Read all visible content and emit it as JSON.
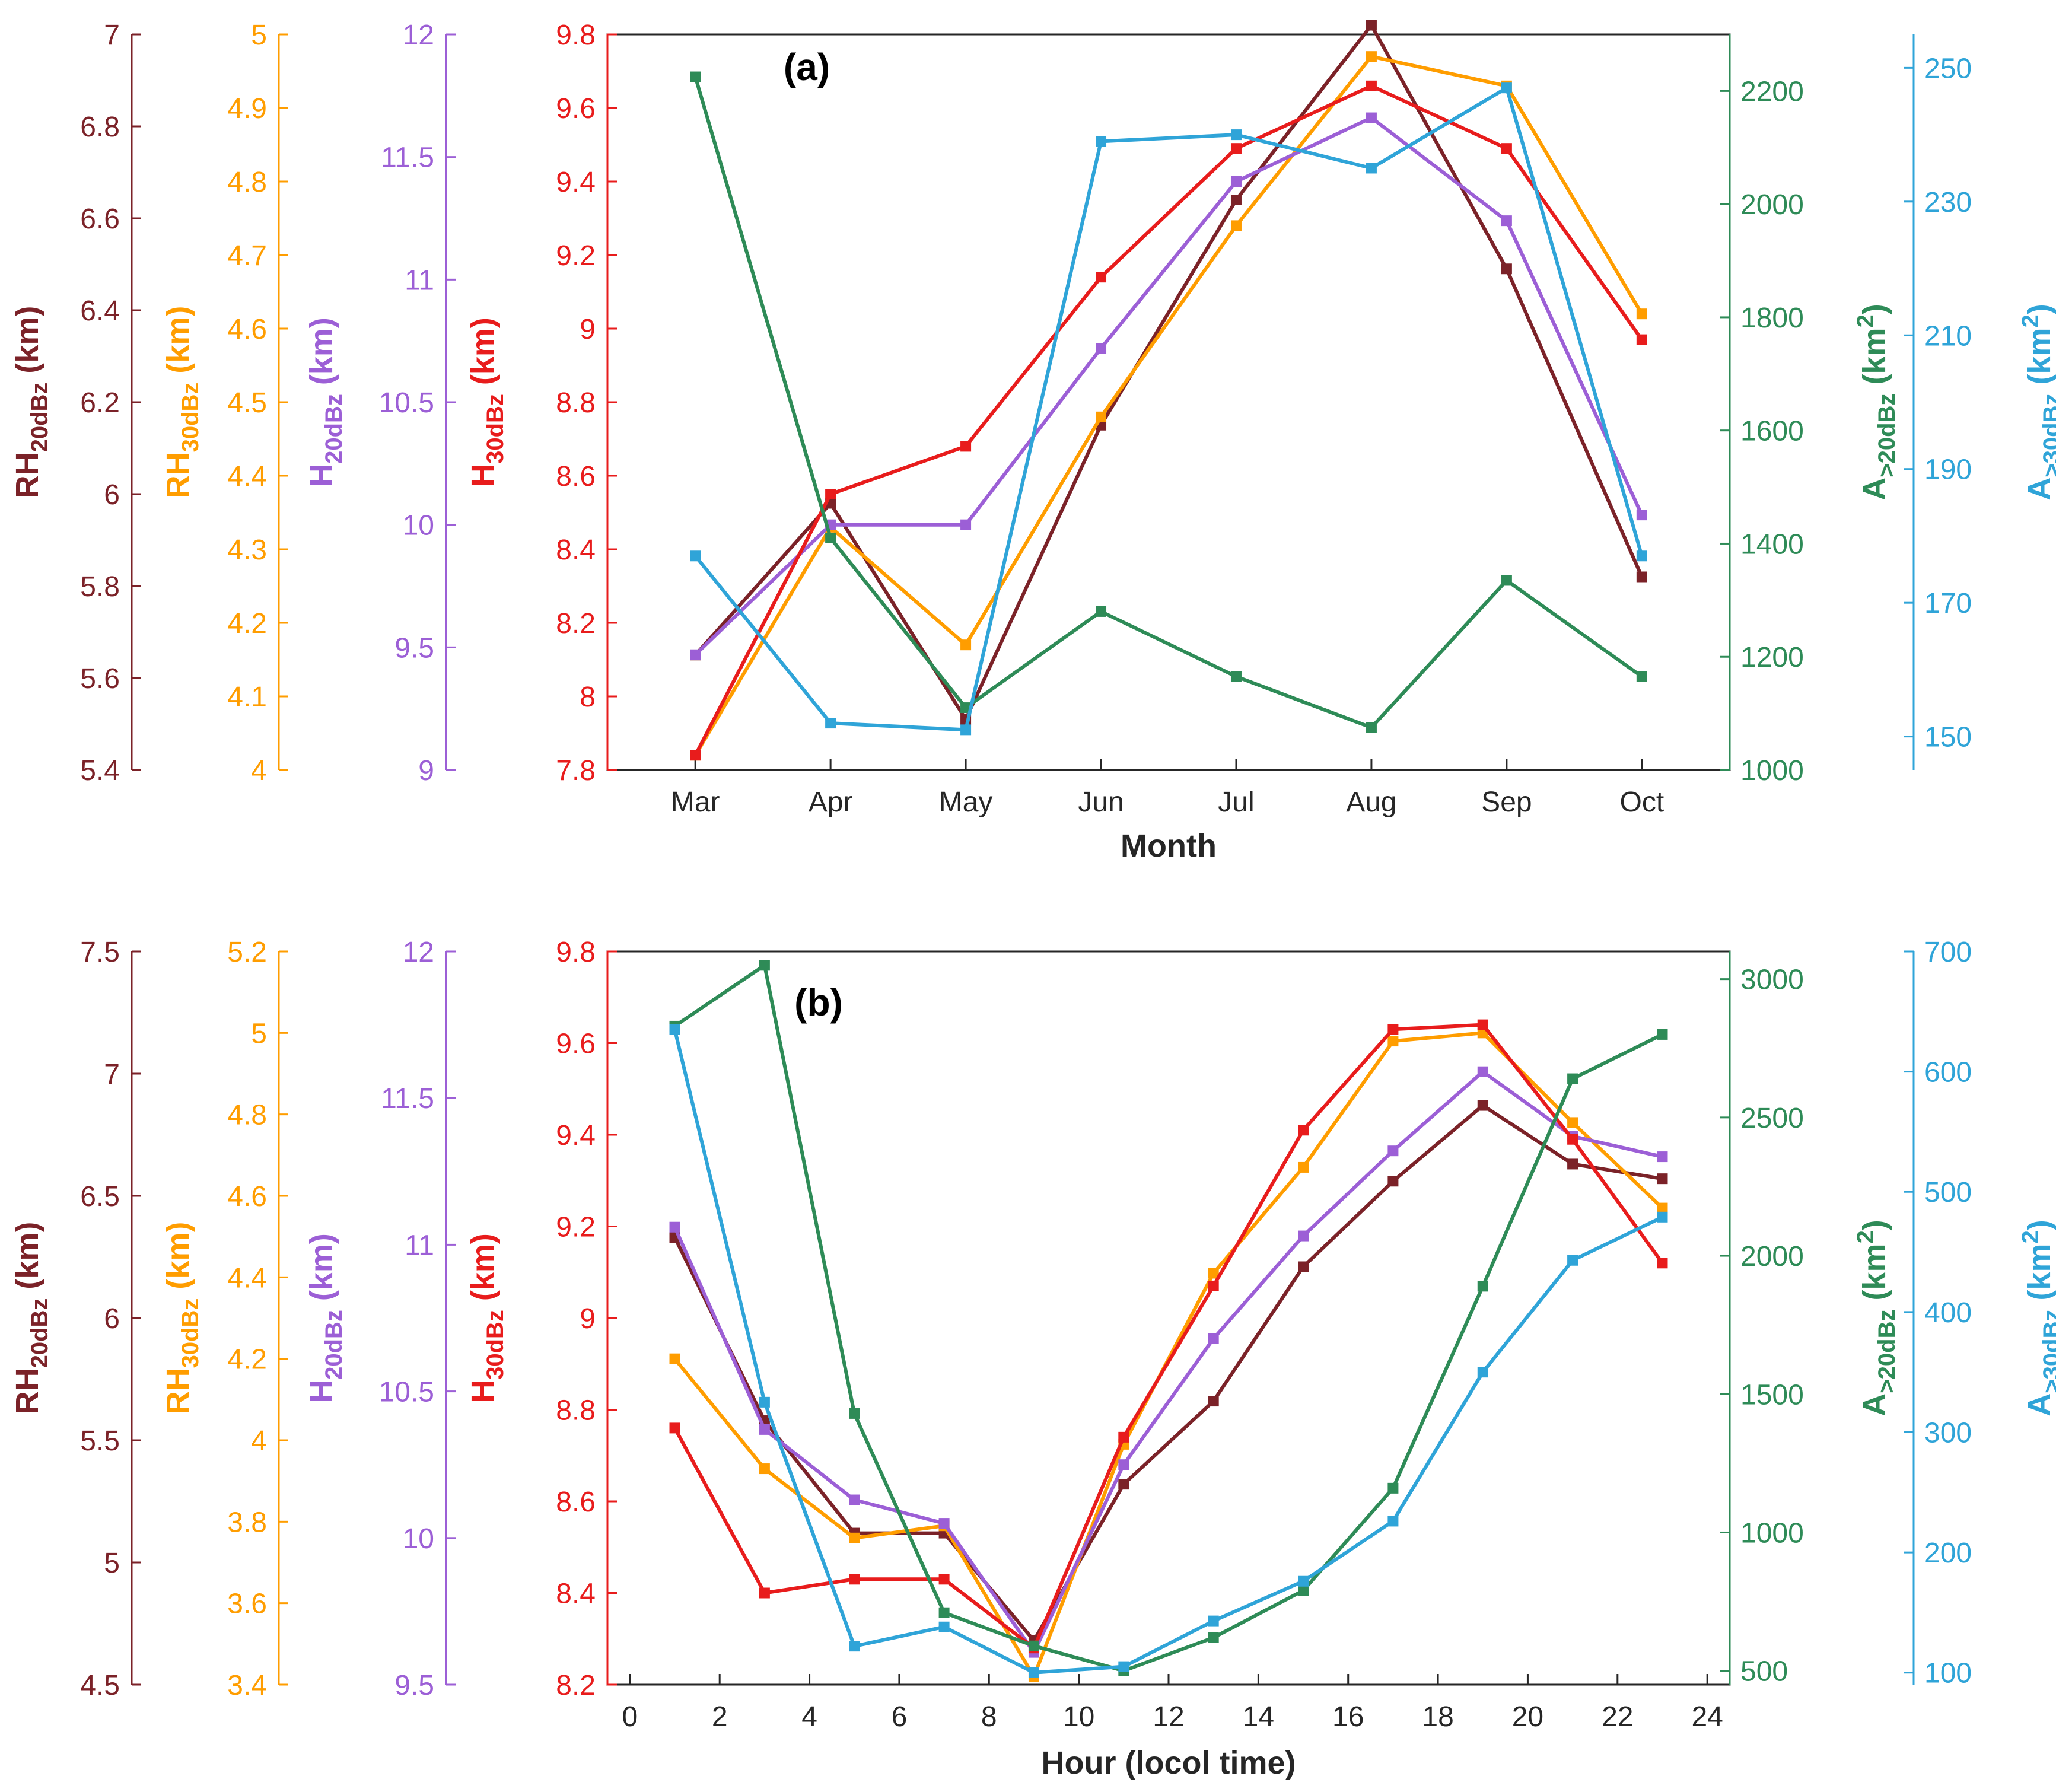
{
  "chart_data": [
    {
      "type": "line",
      "panel": "a",
      "title": "(a)",
      "xlabel": "Month",
      "categories": [
        "Mar",
        "Apr",
        "May",
        "Jun",
        "Jul",
        "Aug",
        "Sep",
        "Oct"
      ],
      "axes": {
        "RH20": {
          "label_main": "RH",
          "label_sub": "20dBz",
          "label_unit": " (km)",
          "color": "#7b2228",
          "lim": [
            5.4,
            7
          ],
          "ticks": [
            "5.4",
            "5.6",
            "5.8",
            "6",
            "6.2",
            "6.4",
            "6.6",
            "6.8",
            "7"
          ]
        },
        "RH30": {
          "label_main": "RH",
          "label_sub": "30dBz",
          "label_unit": " (km)",
          "color": "#ff9d00",
          "lim": [
            4,
            5
          ],
          "ticks": [
            "4",
            "4.1",
            "4.2",
            "4.3",
            "4.4",
            "4.5",
            "4.6",
            "4.7",
            "4.8",
            "4.9",
            "5"
          ]
        },
        "H20": {
          "label_main": "H",
          "label_sub": "20dBz",
          "label_unit": " (km)",
          "color": "#9c5fd6",
          "lim": [
            9,
            12
          ],
          "ticks": [
            "9",
            "9.5",
            "10",
            "10.5",
            "11",
            "11.5",
            "12"
          ]
        },
        "H30": {
          "label_main": "H",
          "label_sub": "30dBz",
          "label_unit": " (km)",
          "color": "#e81c1c",
          "lim": [
            7.8,
            9.8
          ],
          "ticks": [
            "7.8",
            "8",
            "8.2",
            "8.4",
            "8.6",
            "8.8",
            "9",
            "9.2",
            "9.4",
            "9.6",
            "9.8"
          ]
        },
        "A20": {
          "label_main": "A",
          "label_sub": ">20dBz",
          "label_unit": " (km",
          "label_sup": "2",
          "label_end": ")",
          "color": "#2e8b57",
          "lim": [
            1000,
            2300
          ],
          "ticks": [
            "1000",
            "1200",
            "1400",
            "1600",
            "1800",
            "2000",
            "2200"
          ]
        },
        "A30": {
          "label_main": "A",
          "label_sub": ">30dBz",
          "label_unit": " (km",
          "label_sup": "2",
          "label_end": ")",
          "color": "#2fa4d8",
          "lim": [
            145,
            255
          ],
          "ticks": [
            "150",
            "170",
            "190",
            "210",
            "230",
            "250"
          ]
        }
      },
      "series": [
        {
          "name": "RH20dBz",
          "axis": "RH20",
          "values": [
            5.65,
            5.98,
            5.51,
            6.15,
            6.64,
            7.02,
            6.49,
            5.82
          ]
        },
        {
          "name": "RH30dBz",
          "axis": "RH30",
          "values": [
            4.02,
            4.33,
            4.17,
            4.48,
            4.74,
            4.97,
            4.93,
            4.62
          ]
        },
        {
          "name": "H20dBz",
          "axis": "H20",
          "values": [
            9.47,
            10.0,
            10.0,
            10.72,
            11.4,
            11.66,
            11.24,
            10.04
          ]
        },
        {
          "name": "H30dBz",
          "axis": "H30",
          "values": [
            7.84,
            8.55,
            8.68,
            9.14,
            9.49,
            9.66,
            9.49,
            8.97
          ]
        },
        {
          "name": "A>20dBz",
          "axis": "A20",
          "values": [
            2225,
            1410,
            1110,
            1280,
            1165,
            1075,
            1335,
            1165
          ]
        },
        {
          "name": "A>30dBz",
          "axis": "A30",
          "values": [
            177,
            152,
            151,
            239,
            240,
            235,
            247,
            177
          ]
        }
      ]
    },
    {
      "type": "line",
      "panel": "b",
      "title": "(b)",
      "xlabel": "Hour (locol time)",
      "xlim": [
        -0.5,
        24.5
      ],
      "xticks": [
        "0",
        "2",
        "4",
        "6",
        "8",
        "10",
        "12",
        "14",
        "16",
        "18",
        "20",
        "22",
        "24"
      ],
      "x": [
        1,
        3,
        5,
        7,
        9,
        11,
        13,
        15,
        17,
        19,
        21,
        23
      ],
      "axes": {
        "RH20": {
          "label_main": "RH",
          "label_sub": "20dBz",
          "label_unit": " (km)",
          "color": "#7b2228",
          "lim": [
            4.5,
            7.5
          ],
          "ticks": [
            "4.5",
            "5",
            "5.5",
            "6",
            "6.5",
            "7",
            "7.5"
          ]
        },
        "RH30": {
          "label_main": "RH",
          "label_sub": "30dBz",
          "label_unit": " (km)",
          "color": "#ff9d00",
          "lim": [
            3.4,
            5.2
          ],
          "ticks": [
            "3.4",
            "3.6",
            "3.8",
            "4",
            "4.2",
            "4.4",
            "4.6",
            "4.8",
            "5",
            "5.2"
          ]
        },
        "H20": {
          "label_main": "H",
          "label_sub": "20dBz",
          "label_unit": " (km)",
          "color": "#9c5fd6",
          "lim": [
            9.5,
            12
          ],
          "ticks": [
            "9.5",
            "10",
            "10.5",
            "11",
            "11.5",
            "12"
          ]
        },
        "H30": {
          "label_main": "H",
          "label_sub": "30dBz",
          "label_unit": " (km)",
          "color": "#e81c1c",
          "lim": [
            8.2,
            9.8
          ],
          "ticks": [
            "8.2",
            "8.4",
            "8.6",
            "8.8",
            "9",
            "9.2",
            "9.4",
            "9.6",
            "9.8"
          ]
        },
        "A20": {
          "label_main": "A",
          "label_sub": ">20dBz",
          "label_unit": " (km",
          "label_sup": "2",
          "label_end": ")",
          "color": "#2e8b57",
          "lim": [
            450,
            3100
          ],
          "ticks": [
            "500",
            "1000",
            "1500",
            "2000",
            "2500",
            "3000"
          ]
        },
        "A30": {
          "label_main": "A",
          "label_sub": ">30dBz",
          "label_unit": " (km",
          "label_sup": "2",
          "label_end": ")",
          "color": "#2fa4d8",
          "lim": [
            90,
            700
          ],
          "ticks": [
            "100",
            "200",
            "300",
            "400",
            "500",
            "600",
            "700"
          ]
        }
      },
      "series": [
        {
          "name": "RH20dBz",
          "axis": "RH20",
          "values": [
            6.33,
            5.58,
            5.12,
            5.12,
            4.68,
            5.32,
            5.66,
            6.21,
            6.56,
            6.87,
            6.63,
            6.57
          ]
        },
        {
          "name": "RH30dBz",
          "axis": "RH30",
          "values": [
            4.2,
            3.93,
            3.76,
            3.79,
            3.42,
            3.99,
            4.41,
            4.67,
            4.98,
            5.0,
            4.78,
            4.57
          ]
        },
        {
          "name": "H20dBz",
          "axis": "H20",
          "values": [
            11.06,
            10.37,
            10.13,
            10.05,
            9.61,
            10.25,
            10.68,
            11.03,
            11.32,
            11.59,
            11.37,
            11.3
          ]
        },
        {
          "name": "H30dBz",
          "axis": "H30",
          "values": [
            8.76,
            8.4,
            8.43,
            8.43,
            8.28,
            8.74,
            9.07,
            9.41,
            9.63,
            9.64,
            9.39,
            9.12
          ]
        },
        {
          "name": "A>20dBz",
          "axis": "A20",
          "values": [
            2830,
            3050,
            1430,
            710,
            590,
            500,
            620,
            790,
            1160,
            1890,
            2640,
            2800
          ]
        },
        {
          "name": "A>30dBz",
          "axis": "A30",
          "values": [
            635,
            325,
            122,
            138,
            100,
            105,
            143,
            176,
            226,
            350,
            443,
            479
          ]
        }
      ]
    }
  ]
}
